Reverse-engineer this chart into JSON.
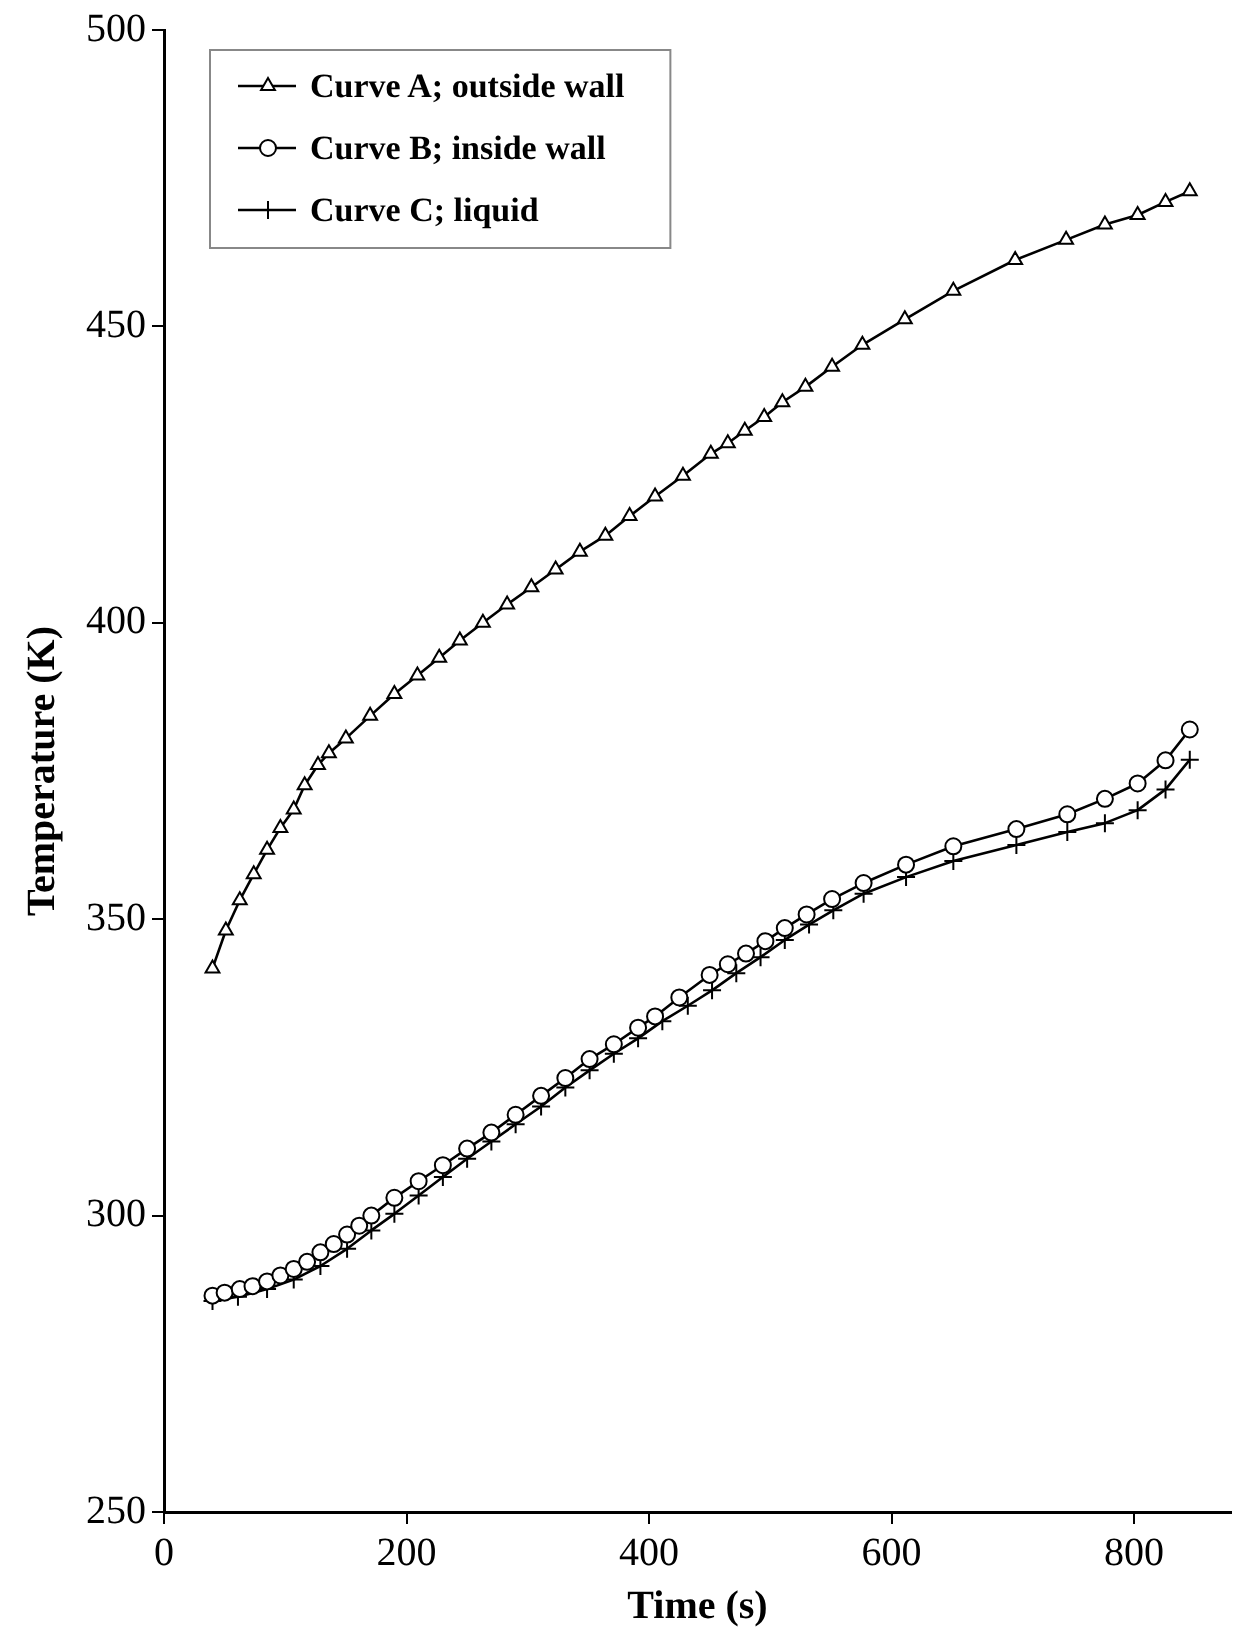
{
  "chart_data": {
    "type": "line",
    "xlabel": "Time (s)",
    "ylabel": "Temperature (K)",
    "xlim": [
      0,
      880
    ],
    "xticks": [
      0,
      200,
      400,
      600,
      800
    ],
    "ylim": [
      250,
      500
    ],
    "yticks": [
      250,
      300,
      350,
      400,
      450,
      500
    ],
    "grid": false,
    "legend": "top left",
    "line_style": "solid",
    "series": [
      {
        "name": "Curve A; outside wall",
        "color": "#000000",
        "marker": "triangle",
        "x": [
          40,
          51,
          62.5,
          74,
          85,
          96,
          107,
          116,
          127,
          136,
          150,
          170,
          190,
          209,
          227,
          244,
          263,
          283,
          303,
          323,
          343,
          364,
          384,
          405,
          428,
          451,
          465,
          479,
          495,
          510,
          529,
          551,
          576,
          611,
          651,
          702,
          744,
          776,
          803,
          826,
          846
        ],
        "values": [
          341.7,
          348.1,
          353.2,
          357.6,
          361.7,
          365.4,
          368.5,
          372.6,
          376,
          378,
          380.5,
          384.3,
          388,
          391.1,
          394.1,
          397,
          400,
          403.1,
          406,
          409,
          412,
          414.7,
          418,
          421.3,
          424.8,
          428.5,
          430.3,
          432.4,
          434.7,
          437.2,
          439.8,
          443.2,
          446.9,
          451.2,
          456,
          461.2,
          464.6,
          467.2,
          468.8,
          471,
          472.8
        ]
      },
      {
        "name": "Curve B; inside wall",
        "color": "#000000",
        "marker": "circle",
        "x": [
          40,
          50,
          62.5,
          73,
          85,
          96,
          107,
          118,
          129,
          140,
          151,
          161,
          171,
          190,
          210,
          230,
          250,
          270,
          290,
          311,
          331,
          351,
          371,
          391,
          405,
          425,
          450,
          465,
          480,
          496,
          512,
          530,
          551,
          577,
          612,
          651,
          703,
          745,
          776,
          803,
          826,
          846
        ],
        "values": [
          286.5,
          287,
          287.6,
          288.1,
          288.9,
          289.9,
          291,
          292.2,
          293.8,
          295.2,
          296.8,
          298.3,
          300,
          303,
          305.8,
          308.5,
          311.3,
          314,
          317,
          320.2,
          323.2,
          326.4,
          328.9,
          331.7,
          333.6,
          336.8,
          340.6,
          342.4,
          344.2,
          346.3,
          348.5,
          350.8,
          353.4,
          356.1,
          359.2,
          362.3,
          365.2,
          367.7,
          370.3,
          372.9,
          376.8,
          382
        ]
      },
      {
        "name": "Curve C; liquid",
        "color": "#000000",
        "marker": "cross",
        "x": [
          40,
          61,
          85,
          107,
          129,
          151,
          171,
          190,
          210,
          230,
          250,
          270,
          290,
          311,
          331,
          351,
          371,
          391,
          411,
          432,
          452,
          472,
          492,
          512,
          532,
          552,
          577,
          612,
          651,
          703,
          745,
          776,
          803,
          826,
          846
        ],
        "values": [
          285.6,
          286.3,
          287.6,
          289.2,
          291.5,
          294.4,
          297.5,
          300.3,
          303.4,
          306.5,
          309.6,
          312.5,
          315.4,
          318.4,
          321.6,
          324.5,
          327.3,
          329.9,
          332.8,
          335.4,
          338,
          340.9,
          343.6,
          346.5,
          349.1,
          351.5,
          354.3,
          357.1,
          359.8,
          362.5,
          364.7,
          366.2,
          368.4,
          371.9,
          376.9
        ]
      }
    ]
  }
}
